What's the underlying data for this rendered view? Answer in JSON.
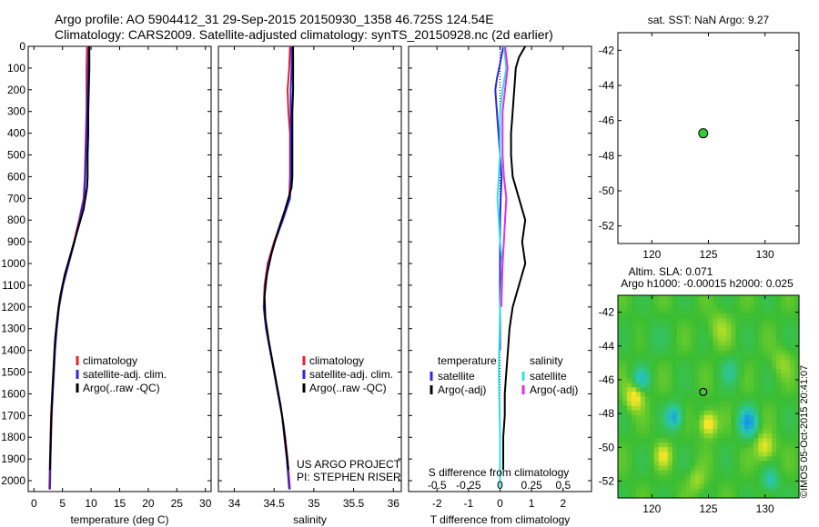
{
  "header": {
    "line1": "Argo profile: AO 5904412_31 29-Sep-2015 20150930_1358 46.725S 124.54E",
    "line2": "Climatology: CARS2009. Satellite-adjusted climatology: synTS_20150928.nc (2d earlier)"
  },
  "credit": "©IMOS 05-Oct-2015 20:41:07",
  "colors": {
    "climatology": "#e8202a",
    "satellite": "#2a2ad8",
    "argo": "#000000",
    "salinity_sat": "#30e0e8",
    "salinity_argo": "#e030e0",
    "map_dot": "#33cc33"
  },
  "chart_data": [
    {
      "id": "temp",
      "type": "line",
      "xlabel": "temperature (deg C)",
      "xlim": [
        -1,
        31
      ],
      "xticks": [
        0,
        5,
        10,
        15,
        20,
        25,
        30
      ],
      "xtick_labels": [
        "0",
        "5",
        "10",
        "15",
        "20",
        "25",
        "30"
      ],
      "ylim": [
        0,
        2050
      ],
      "yticks": [
        0,
        100,
        200,
        300,
        400,
        500,
        600,
        700,
        800,
        900,
        1000,
        1100,
        1200,
        1300,
        1400,
        1500,
        1600,
        1700,
        1800,
        1900,
        2000
      ],
      "legend": [
        "climatology",
        "satellite-adj. clim.",
        "Argo(..raw -QC)"
      ],
      "annotations": [],
      "series": [
        {
          "name": "climatology",
          "color": "#e8202a",
          "points": [
            [
              9.3,
              0
            ],
            [
              9.2,
              100
            ],
            [
              9.2,
              200
            ],
            [
              9.2,
              300
            ],
            [
              9.1,
              400
            ],
            [
              9.0,
              500
            ],
            [
              8.9,
              600
            ],
            [
              8.7,
              700
            ],
            [
              7.9,
              800
            ],
            [
              7.0,
              900
            ],
            [
              6.0,
              1000
            ],
            [
              5.0,
              1100
            ],
            [
              4.3,
              1200
            ],
            [
              3.9,
              1300
            ],
            [
              3.6,
              1400
            ],
            [
              3.4,
              1500
            ],
            [
              3.2,
              1600
            ],
            [
              3.0,
              1700
            ],
            [
              2.9,
              1800
            ],
            [
              2.8,
              1900
            ],
            [
              2.7,
              2040
            ]
          ]
        },
        {
          "name": "satellite-adj. clim.",
          "color": "#2a2ad8",
          "points": [
            [
              9.6,
              0
            ],
            [
              9.5,
              100
            ],
            [
              9.4,
              200
            ],
            [
              9.3,
              300
            ],
            [
              9.2,
              400
            ],
            [
              9.1,
              500
            ],
            [
              9.0,
              600
            ],
            [
              8.8,
              700
            ],
            [
              8.0,
              800
            ],
            [
              7.1,
              900
            ],
            [
              6.1,
              1000
            ],
            [
              5.1,
              1100
            ],
            [
              4.4,
              1200
            ],
            [
              4.0,
              1300
            ],
            [
              3.7,
              1400
            ],
            [
              3.5,
              1500
            ],
            [
              3.3,
              1600
            ],
            [
              3.1,
              1700
            ],
            [
              3.0,
              1800
            ],
            [
              2.9,
              1900
            ],
            [
              2.8,
              2040
            ]
          ]
        },
        {
          "name": "Argo(..raw -QC)",
          "color": "#000000",
          "points": [
            [
              9.7,
              0
            ],
            [
              9.7,
              100
            ],
            [
              9.6,
              200
            ],
            [
              9.5,
              300
            ],
            [
              9.5,
              400
            ],
            [
              9.4,
              500
            ],
            [
              9.4,
              600
            ],
            [
              9.3,
              650
            ],
            [
              8.7,
              750
            ],
            [
              7.6,
              850
            ],
            [
              6.5,
              950
            ],
            [
              5.4,
              1050
            ],
            [
              4.6,
              1150
            ],
            [
              4.1,
              1250
            ],
            [
              3.7,
              1350
            ],
            [
              3.5,
              1450
            ],
            [
              3.3,
              1550
            ],
            [
              3.1,
              1650
            ],
            [
              3.0,
              1750
            ],
            [
              2.9,
              1850
            ],
            [
              2.8,
              1950
            ]
          ]
        }
      ]
    },
    {
      "id": "sal",
      "type": "line",
      "xlabel": "salinity",
      "xlim": [
        33.8,
        36.1
      ],
      "xticks": [
        34,
        34.5,
        35,
        35.5,
        36
      ],
      "xtick_labels": [
        "34",
        "34.5",
        "35",
        "35.5",
        "36"
      ],
      "ylim": [
        0,
        2050
      ],
      "yticks": [
        0,
        100,
        200,
        300,
        400,
        500,
        600,
        700,
        800,
        900,
        1000,
        1100,
        1200,
        1300,
        1400,
        1500,
        1600,
        1700,
        1800,
        1900,
        2000
      ],
      "legend": [
        "climatology",
        "satellite-adj. clim.",
        "Argo(..raw -QC)"
      ],
      "annotations": [
        "US ARGO PROJECT",
        "PI: STEPHEN RISER"
      ],
      "series": [
        {
          "name": "climatology",
          "color": "#e8202a",
          "points": [
            [
              34.7,
              0
            ],
            [
              34.69,
              100
            ],
            [
              34.67,
              200
            ],
            [
              34.68,
              300
            ],
            [
              34.7,
              400
            ],
            [
              34.7,
              500
            ],
            [
              34.7,
              600
            ],
            [
              34.69,
              700
            ],
            [
              34.6,
              800
            ],
            [
              34.5,
              900
            ],
            [
              34.42,
              1000
            ],
            [
              34.38,
              1100
            ],
            [
              34.37,
              1200
            ],
            [
              34.4,
              1300
            ],
            [
              34.45,
              1400
            ],
            [
              34.5,
              1500
            ],
            [
              34.55,
              1600
            ],
            [
              34.6,
              1700
            ],
            [
              34.64,
              1800
            ],
            [
              34.67,
              1900
            ],
            [
              34.7,
              2040
            ]
          ]
        },
        {
          "name": "satellite-adj. clim.",
          "color": "#2a2ad8",
          "points": [
            [
              34.72,
              0
            ],
            [
              34.72,
              100
            ],
            [
              34.71,
              200
            ],
            [
              34.71,
              300
            ],
            [
              34.71,
              400
            ],
            [
              34.71,
              500
            ],
            [
              34.71,
              600
            ],
            [
              34.7,
              700
            ],
            [
              34.61,
              800
            ],
            [
              34.51,
              900
            ],
            [
              34.43,
              1000
            ],
            [
              34.39,
              1100
            ],
            [
              34.37,
              1200
            ],
            [
              34.4,
              1300
            ],
            [
              34.45,
              1400
            ],
            [
              34.5,
              1500
            ],
            [
              34.55,
              1600
            ],
            [
              34.6,
              1700
            ],
            [
              34.63,
              1800
            ],
            [
              34.66,
              1900
            ],
            [
              34.69,
              2040
            ]
          ]
        },
        {
          "name": "Argo(..raw -QC)",
          "color": "#000000",
          "points": [
            [
              34.74,
              0
            ],
            [
              34.74,
              100
            ],
            [
              34.74,
              200
            ],
            [
              34.73,
              300
            ],
            [
              34.73,
              400
            ],
            [
              34.73,
              500
            ],
            [
              34.73,
              600
            ],
            [
              34.72,
              650
            ],
            [
              34.64,
              750
            ],
            [
              34.55,
              850
            ],
            [
              34.47,
              950
            ],
            [
              34.41,
              1050
            ],
            [
              34.38,
              1150
            ],
            [
              34.39,
              1250
            ],
            [
              34.43,
              1350
            ],
            [
              34.48,
              1450
            ],
            [
              34.53,
              1550
            ],
            [
              34.58,
              1650
            ],
            [
              34.62,
              1750
            ],
            [
              34.65,
              1850
            ],
            [
              34.68,
              1950
            ]
          ]
        }
      ]
    },
    {
      "id": "diff",
      "type": "line",
      "xlabel": "T difference from climatology",
      "xlim": [
        -2.9,
        2.9
      ],
      "xticks": [
        -2,
        -1,
        0,
        1,
        2
      ],
      "xtick_labels": [
        "-2",
        "-1",
        "0",
        "1",
        "2"
      ],
      "x2label": "S difference from climatology",
      "x2ticks": [
        -0.5,
        -0.25,
        0,
        0.25,
        0.5
      ],
      "x2tick_labels": [
        "-0.5",
        "-0.25",
        "0",
        "0.25",
        "0.5"
      ],
      "ylim": [
        0,
        2050
      ],
      "yticks": [
        0,
        100,
        200,
        300,
        400,
        500,
        600,
        700,
        800,
        900,
        1000,
        1100,
        1200,
        1300,
        1400,
        1500,
        1600,
        1700,
        1800,
        1900,
        2000
      ],
      "legend_left_title": "temperature",
      "legend_right_title": "salinity",
      "legend_left": [
        "satellite",
        "Argo(-adj)"
      ],
      "legend_right": [
        "satellite",
        "Argo(-adj)"
      ],
      "series": [
        {
          "name": "temperature satellite",
          "color": "#2a2ad8",
          "points": [
            [
              0.1,
              0
            ],
            [
              0.0,
              80
            ],
            [
              -0.1,
              150
            ],
            [
              -0.15,
              200
            ],
            [
              -0.1,
              300
            ],
            [
              -0.05,
              400
            ],
            [
              0.0,
              500
            ],
            [
              0.05,
              600
            ],
            [
              0.02,
              700
            ],
            [
              0.0,
              800
            ],
            [
              0.0,
              900
            ],
            [
              0.0,
              1000
            ],
            [
              0.0,
              1100
            ],
            [
              0.0,
              1200
            ],
            [
              0.0,
              1300
            ],
            [
              0.0,
              1400
            ]
          ]
        },
        {
          "name": "temperature Argo(-adj)",
          "color": "#000000",
          "points": [
            [
              0.8,
              0
            ],
            [
              0.6,
              50
            ],
            [
              0.5,
              100
            ],
            [
              0.45,
              200
            ],
            [
              0.4,
              300
            ],
            [
              0.35,
              400
            ],
            [
              0.35,
              500
            ],
            [
              0.4,
              600
            ],
            [
              0.6,
              700
            ],
            [
              0.8,
              800
            ],
            [
              0.7,
              900
            ],
            [
              0.8,
              1000
            ],
            [
              0.6,
              1100
            ],
            [
              0.4,
              1200
            ],
            [
              0.3,
              1300
            ],
            [
              0.25,
              1400
            ],
            [
              0.2,
              1500
            ],
            [
              0.15,
              1600
            ],
            [
              0.15,
              1700
            ],
            [
              0.1,
              1800
            ],
            [
              0.1,
              1900
            ],
            [
              0.1,
              1950
            ]
          ]
        },
        {
          "name": "salinity satellite",
          "color": "#30e0e8",
          "points": [
            [
              0.03,
              0
            ],
            [
              0.05,
              100
            ],
            [
              0.02,
              200
            ],
            [
              0.0,
              300
            ],
            [
              0.0,
              500
            ],
            [
              -0.02,
              700
            ],
            [
              0.0,
              900
            ],
            [
              0.02,
              1000
            ],
            [
              0.0,
              1200
            ],
            [
              -0.01,
              1500
            ],
            [
              0.0,
              1800
            ],
            [
              0.0,
              2040
            ]
          ]
        },
        {
          "name": "salinity Argo(-adj)",
          "color": "#e030e0",
          "points": [
            [
              0.04,
              0
            ],
            [
              0.06,
              100
            ],
            [
              0.04,
              200
            ],
            [
              0.02,
              300
            ],
            [
              0.02,
              500
            ],
            [
              0.03,
              600
            ],
            [
              0.05,
              700
            ],
            [
              0.04,
              800
            ],
            [
              0.03,
              900
            ],
            [
              0.02,
              1000
            ],
            [
              0.01,
              1200
            ]
          ]
        }
      ]
    },
    {
      "id": "sst_map",
      "type": "scatter",
      "title": "sat. SST: NaN Argo: 9.27",
      "xlim": [
        117,
        133
      ],
      "ylim": [
        -53,
        -41
      ],
      "xticks": [
        120,
        125,
        130
      ],
      "yticks": [
        -52,
        -50,
        -48,
        -46,
        -44,
        -42
      ],
      "point": [
        124.54,
        -46.725
      ]
    },
    {
      "id": "sla_map",
      "type": "heatmap",
      "title1": "Altim. SLA: 0.071",
      "title2": "Argo h1000: -0.00015 h2000: 0.025",
      "xlim": [
        117,
        133
      ],
      "ylim": [
        -53,
        -41
      ],
      "xticks": [
        120,
        125,
        130
      ],
      "yticks": [
        -52,
        -50,
        -48,
        -46,
        -44,
        -42
      ],
      "point": [
        124.54,
        -46.725
      ],
      "blobs": [
        {
          "lon": 128.5,
          "lat": -48.5,
          "v": -0.9,
          "s": 0.8
        },
        {
          "lon": 122.0,
          "lat": -48.2,
          "v": -0.8,
          "s": 0.7
        },
        {
          "lon": 119.0,
          "lat": -46.0,
          "v": -0.6,
          "s": 0.7
        },
        {
          "lon": 127.0,
          "lat": -45.5,
          "v": -0.3,
          "s": 0.8
        },
        {
          "lon": 130.5,
          "lat": -52.0,
          "v": -0.5,
          "s": 0.7
        },
        {
          "lon": 125.0,
          "lat": -48.6,
          "v": 0.8,
          "s": 0.7
        },
        {
          "lon": 118.5,
          "lat": -47.0,
          "v": 0.7,
          "s": 0.8
        },
        {
          "lon": 130.0,
          "lat": -50.0,
          "v": 0.6,
          "s": 0.8
        },
        {
          "lon": 121.0,
          "lat": -50.5,
          "v": 0.5,
          "s": 0.7
        },
        {
          "lon": 126.0,
          "lat": -43.0,
          "v": 0.3,
          "s": 1.0
        },
        {
          "lon": 124.0,
          "lat": -52.0,
          "v": 0.3,
          "s": 0.8
        },
        {
          "lon": 120.0,
          "lat": -43.5,
          "v": -0.15,
          "s": 1.0
        },
        {
          "lon": 131.5,
          "lat": -45.0,
          "v": 0.25,
          "s": 0.9
        }
      ]
    }
  ]
}
